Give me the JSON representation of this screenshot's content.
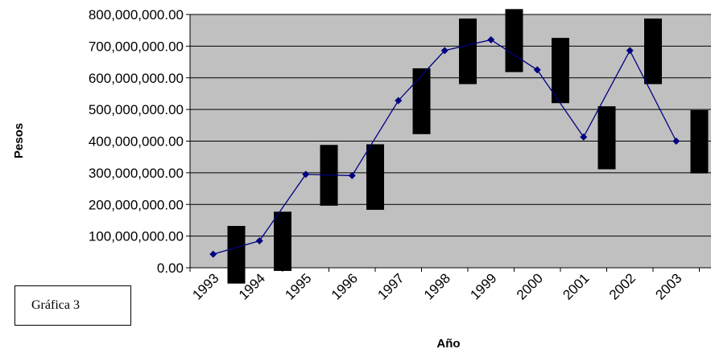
{
  "caption": "Gráfica 3",
  "chart_data": {
    "type": "line",
    "title": "",
    "xlabel": "Año",
    "ylabel": "Pesos",
    "ylim": [
      0,
      800000000
    ],
    "yticks": [
      0,
      100000000,
      200000000,
      300000000,
      400000000,
      500000000,
      600000000,
      700000000,
      800000000
    ],
    "ytick_labels": [
      "0.00",
      "100,000,000.00",
      "200,000,000.00",
      "300,000,000.00",
      "400,000,000.00",
      "500,000,000.00",
      "600,000,000.00",
      "700,000,000.00",
      "800,000,000.00"
    ],
    "categories": [
      "1993",
      "1994",
      "1995",
      "1996",
      "1997",
      "1998",
      "1999",
      "2000",
      "2001",
      "2002",
      "2003"
    ],
    "grid": true,
    "plot_background": "#c0c0c0",
    "series": [
      {
        "kind": "line",
        "color": "#000080",
        "marker": "diamond",
        "values": [
          43000000,
          85000000,
          295000000,
          291000000,
          528000000,
          686000000,
          720000000,
          625000000,
          413000000,
          686000000,
          400000000
        ]
      },
      {
        "kind": "range-bar",
        "color": "#000000",
        "x": [
          "1994",
          "1995",
          "1996",
          "1997",
          "1998",
          "1999",
          "2000",
          "2001",
          "2002",
          "2003",
          "2004"
        ],
        "low": [
          -50000000,
          -10000000,
          196000000,
          183000000,
          422000000,
          580000000,
          618000000,
          520000000,
          311000000,
          580000000,
          298000000
        ],
        "high": [
          132000000,
          177000000,
          388000000,
          390000000,
          630000000,
          787000000,
          817000000,
          726000000,
          510000000,
          787000000,
          498000000
        ]
      }
    ]
  }
}
